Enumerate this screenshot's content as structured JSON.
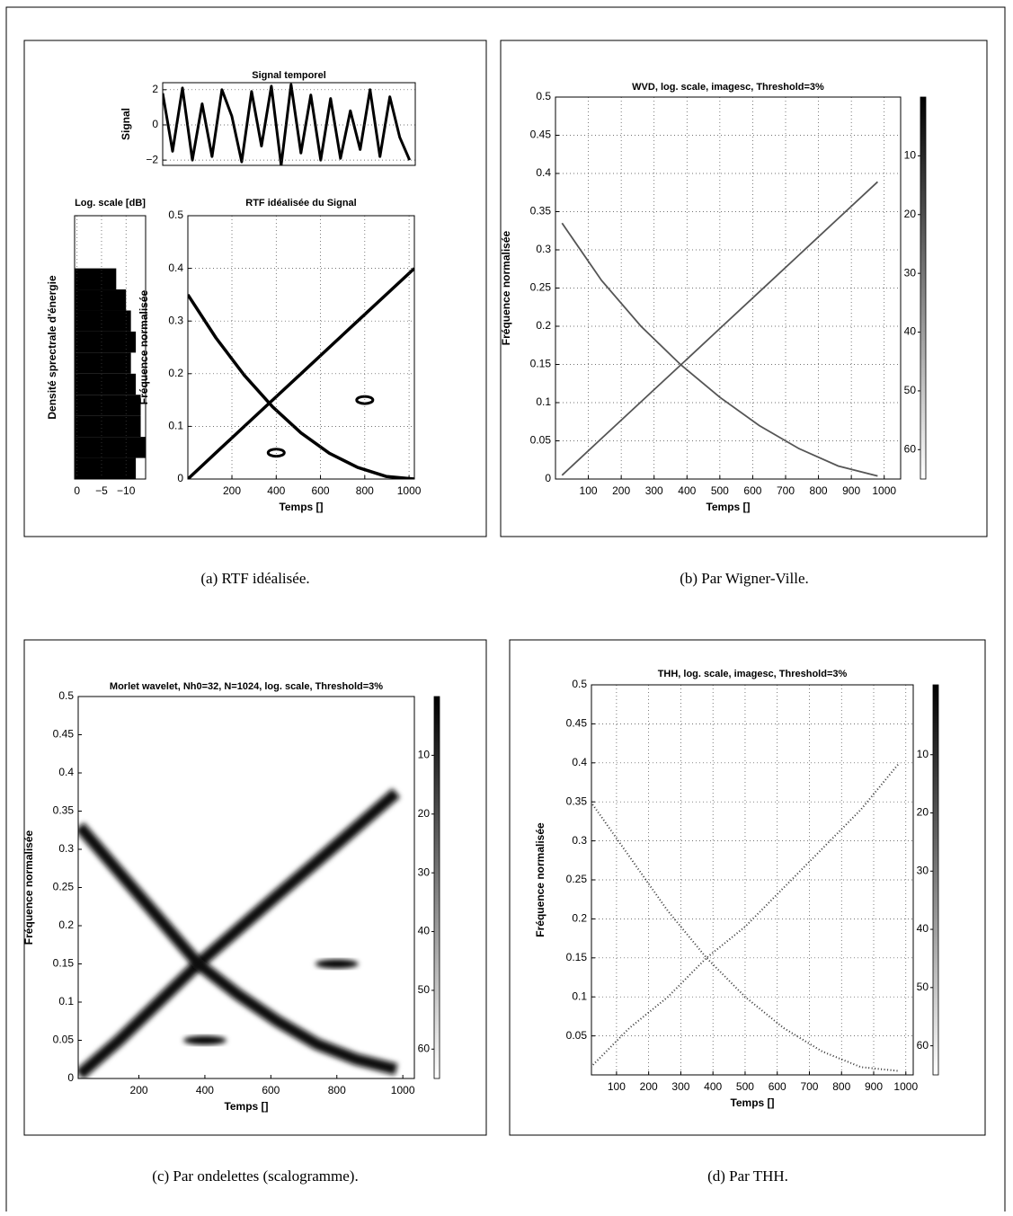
{
  "chart_data": [
    {
      "type": "line",
      "title": "Signal temporel",
      "ylabel": "Signal",
      "x": [
        1,
        41,
        81,
        121,
        161,
        201,
        241,
        281,
        321,
        361,
        401,
        441,
        481,
        521,
        561,
        601,
        641,
        681,
        721,
        761,
        801,
        841,
        881,
        921,
        961,
        1001
      ],
      "series": [
        {
          "color": "#000000",
          "values": [
            1.8,
            -1.5,
            2.1,
            -2,
            1.2,
            -1.8,
            2,
            0.5,
            -2.1,
            1.9,
            -1.2,
            2.2,
            -2.3,
            2.3,
            -1.6,
            1.7,
            -2,
            1.5,
            -1.9,
            0.8,
            -1.4,
            2,
            -1.8,
            1.6,
            -0.7,
            -2
          ]
        }
      ],
      "xlim": [
        1,
        1024
      ],
      "ylim": [
        -2.3,
        2.4
      ],
      "yticks": [
        {
          "value": -2,
          "label": "−2"
        },
        0,
        2
      ],
      "grid": true
    },
    {
      "type": "barh",
      "title": "Log. scale [dB]",
      "ylabel": "Densité sprectrale d'énergie",
      "y": [
        0.02,
        0.06,
        0.1,
        0.14,
        0.18,
        0.22,
        0.26,
        0.3,
        0.34,
        0.38
      ],
      "values": [
        -12,
        -14,
        -13,
        -13,
        -12,
        -11,
        -12,
        -11,
        -10,
        -8
      ],
      "color": "#000000",
      "xlim": [
        0.5,
        -14
      ],
      "ylim": [
        0,
        0.5
      ],
      "xticks": [
        0,
        {
          "value": -5,
          "label": "−5"
        },
        {
          "value": -10,
          "label": "−10"
        }
      ],
      "grid": true
    },
    {
      "type": "line",
      "title": "RTF idéalisée du Signal",
      "xlabel": "Temps []",
      "ylabel": "Fréquence normalisée",
      "caption": "(a) RTF idéalisée.",
      "x": [
        1,
        128,
        256,
        384,
        512,
        640,
        768,
        896,
        1024
      ],
      "series": [
        {
          "color": "#000000",
          "values": [
            0,
            0.05,
            0.1,
            0.15,
            0.2,
            0.25,
            0.3,
            0.35,
            0.4
          ]
        },
        {
          "color": "#000000",
          "values": [
            0.35,
            0.268,
            0.197,
            0.137,
            0.0875,
            0.049,
            0.022,
            0.005,
            0
          ]
        },
        {
          "color": "#000000",
          "marker": "ring",
          "x": [
            400,
            800
          ],
          "values": [
            0.05,
            0.15
          ]
        }
      ],
      "xlim": [
        1,
        1024
      ],
      "ylim": [
        0,
        0.5
      ],
      "xticks": [
        200,
        400,
        600,
        800,
        1000
      ],
      "yticks": [
        0,
        0.1,
        0.2,
        0.3,
        0.4,
        0.5
      ],
      "grid": true
    },
    {
      "type": "tfr",
      "render": "wvd",
      "title": "WVD, log. scale, imagesc, Threshold=3%",
      "xlabel": "Temps []",
      "ylabel": "Fréquence normalisée",
      "caption": "(b) Par Wigner-Ville.",
      "x": [
        20,
        140,
        260,
        380,
        500,
        620,
        740,
        860,
        980
      ],
      "series": [
        {
          "color": "#555555",
          "values": [
            0.005,
            0.053,
            0.101,
            0.149,
            0.197,
            0.245,
            0.293,
            0.341,
            0.389
          ]
        },
        {
          "color": "#555555",
          "values": [
            0.335,
            0.26,
            0.2,
            0.15,
            0.107,
            0.07,
            0.04,
            0.017,
            0.004
          ]
        }
      ],
      "xlim": [
        0,
        1050
      ],
      "ylim": [
        0,
        0.5
      ],
      "xticks": [
        100,
        200,
        300,
        400,
        500,
        600,
        700,
        800,
        900,
        1000
      ],
      "yticks": [
        0,
        0.05,
        0.1,
        0.15,
        0.2,
        0.25,
        0.3,
        0.35,
        0.4,
        0.45,
        0.5
      ],
      "grid": true,
      "colorbar": {
        "lim": [
          0,
          65
        ],
        "ticks": [
          10,
          20,
          30,
          40,
          50,
          60
        ]
      }
    },
    {
      "type": "tfr",
      "render": "scalogram",
      "title": "Morlet wavelet, Nh0=32, N=1024, log. scale, Threshold=3%",
      "xlabel": "Temps []",
      "ylabel": "Fréquence normalisée",
      "caption": "(c) Par ondelettes (scalogramme).",
      "x": [
        20,
        140,
        260,
        380,
        500,
        620,
        740,
        860,
        980
      ],
      "series": [
        {
          "color": "#111111",
          "values": [
            0.005,
            0.05,
            0.1,
            0.15,
            0.195,
            0.24,
            0.284,
            0.329,
            0.374
          ]
        },
        {
          "color": "#111111",
          "values": [
            0.33,
            0.27,
            0.21,
            0.15,
            0.11,
            0.075,
            0.045,
            0.025,
            0.012
          ]
        },
        {
          "color": "#000000",
          "marker": "blob",
          "x": [
            400,
            800
          ],
          "values": [
            0.05,
            0.15
          ]
        }
      ],
      "xlim": [
        16,
        1035
      ],
      "ylim": [
        0,
        0.5
      ],
      "xticks": [
        200,
        400,
        600,
        800,
        1000
      ],
      "yticks": [
        0,
        0.05,
        0.1,
        0.15,
        0.2,
        0.25,
        0.3,
        0.35,
        0.4,
        0.45,
        0.5
      ],
      "grid": false,
      "colorbar": {
        "lim": [
          0,
          65
        ],
        "ticks": [
          10,
          20,
          30,
          40,
          50,
          60
        ]
      }
    },
    {
      "type": "tfr",
      "render": "thh",
      "title": "THH, log. scale, imagesc, Threshold=3%",
      "xlabel": "Temps []",
      "ylabel": "Fréquence normalisée",
      "caption": "(d) Par THH.",
      "x": [
        20,
        140,
        260,
        380,
        500,
        620,
        740,
        860,
        980
      ],
      "series": [
        {
          "color": "#333333",
          "values": [
            0.01,
            0.06,
            0.1,
            0.15,
            0.19,
            0.24,
            0.29,
            0.34,
            0.4
          ]
        },
        {
          "color": "#333333",
          "values": [
            0.35,
            0.28,
            0.21,
            0.15,
            0.1,
            0.06,
            0.03,
            0.01,
            0.005
          ]
        }
      ],
      "xlim": [
        22,
        1023
      ],
      "ylim": [
        0,
        0.5
      ],
      "xticks": [
        100,
        200,
        300,
        400,
        500,
        600,
        700,
        800,
        900,
        1000
      ],
      "yticks": [
        0.05,
        0.1,
        0.15,
        0.2,
        0.25,
        0.3,
        0.35,
        0.4,
        0.45,
        0.5
      ],
      "grid": true,
      "colorbar": {
        "lim": [
          -2,
          65
        ],
        "ticks": [
          10,
          20,
          30,
          40,
          50,
          60
        ]
      }
    }
  ]
}
